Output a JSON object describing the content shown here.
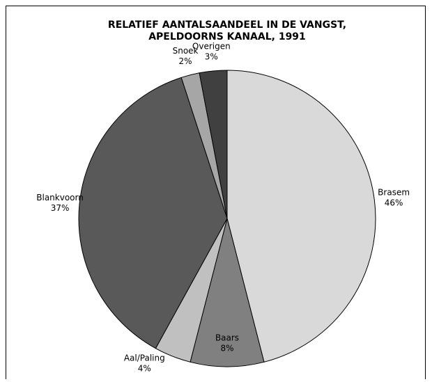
{
  "chart_data": {
    "type": "pie",
    "title": [
      "RELATIEF AANTALSAANDEEL IN DE VANGST,",
      "APELDOORNS KANAAL, 1991"
    ],
    "categories": [
      "Brasem",
      "Baars",
      "Aal/Paling",
      "Blankvoorn",
      "Snoek",
      "Overigen"
    ],
    "values": [
      46,
      8,
      4,
      37,
      2,
      3
    ],
    "value_labels": [
      "46%",
      "8%",
      "4%",
      "37%",
      "2%",
      "3%"
    ],
    "colors": [
      "#d9d9d9",
      "#808080",
      "#c0c0c0",
      "#595959",
      "#a6a6a6",
      "#404040"
    ]
  }
}
